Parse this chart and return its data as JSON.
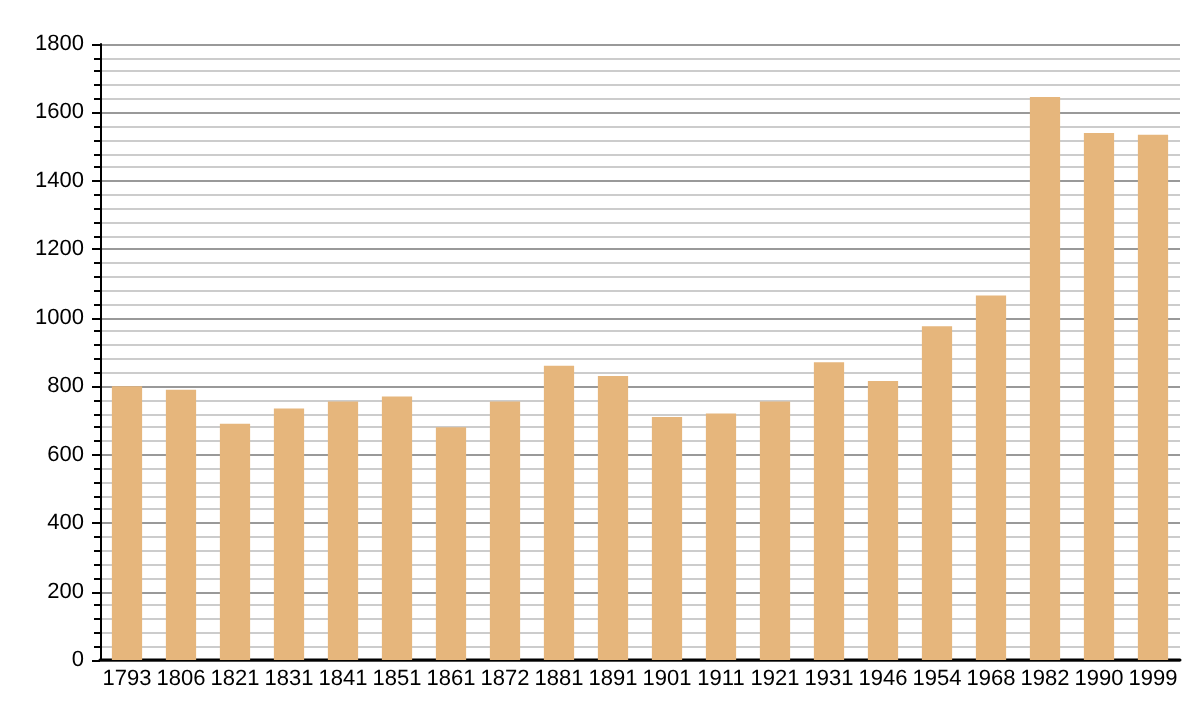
{
  "chart_data": {
    "type": "bar",
    "categories": [
      "1793",
      "1806",
      "1821",
      "1831",
      "1841",
      "1851",
      "1861",
      "1872",
      "1881",
      "1891",
      "1901",
      "1911",
      "1921",
      "1931",
      "1946",
      "1954",
      "1968",
      "1982",
      "1990",
      "1999"
    ],
    "values": [
      800,
      790,
      690,
      735,
      755,
      770,
      680,
      755,
      860,
      830,
      710,
      720,
      755,
      870,
      815,
      975,
      1065,
      1645,
      1540,
      1535
    ],
    "color": "#e6b67c",
    "ylim": [
      0,
      1800
    ],
    "yticks": [
      0,
      200,
      400,
      600,
      800,
      1000,
      1200,
      1400,
      1600,
      1800
    ],
    "grid": "y"
  }
}
